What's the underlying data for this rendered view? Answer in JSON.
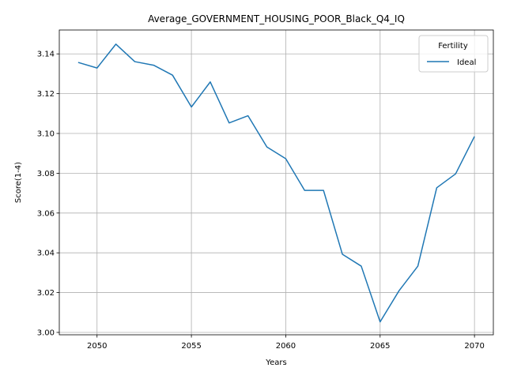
{
  "chart_data": {
    "type": "line",
    "title": "Average_GOVERNMENT_HOUSING_POOR_Black_Q4_IQ",
    "xlabel": "Years",
    "ylabel": "Score(1-4)",
    "xlim": [
      2048,
      2071
    ],
    "ylim": [
      2.9988,
      3.152
    ],
    "xticks": [
      2050,
      2055,
      2060,
      2065,
      2070
    ],
    "yticks": [
      3.0,
      3.02,
      3.04,
      3.06,
      3.08,
      3.1,
      3.12,
      3.14
    ],
    "ytick_labels": [
      "3.00",
      "3.02",
      "3.04",
      "3.06",
      "3.08",
      "3.10",
      "3.12",
      "3.14"
    ],
    "grid": true,
    "legend": {
      "title": "Fertility",
      "placement": "top-right"
    },
    "series": [
      {
        "name": "Ideal",
        "color": "#1f77b4",
        "x": [
          2049,
          2050,
          2051,
          2052,
          2053,
          2054,
          2055,
          2056,
          2057,
          2058,
          2059,
          2060,
          2061,
          2062,
          2063,
          2064,
          2065,
          2066,
          2067,
          2068,
          2069,
          2070
        ],
        "y": [
          3.1357,
          3.1329,
          3.1449,
          3.1361,
          3.1343,
          3.1293,
          3.1133,
          3.1259,
          3.1053,
          3.1089,
          3.0932,
          3.0873,
          3.0714,
          3.0714,
          3.0393,
          3.0333,
          3.0053,
          3.0209,
          3.0333,
          3.0727,
          3.0797,
          3.0985
        ]
      }
    ]
  }
}
